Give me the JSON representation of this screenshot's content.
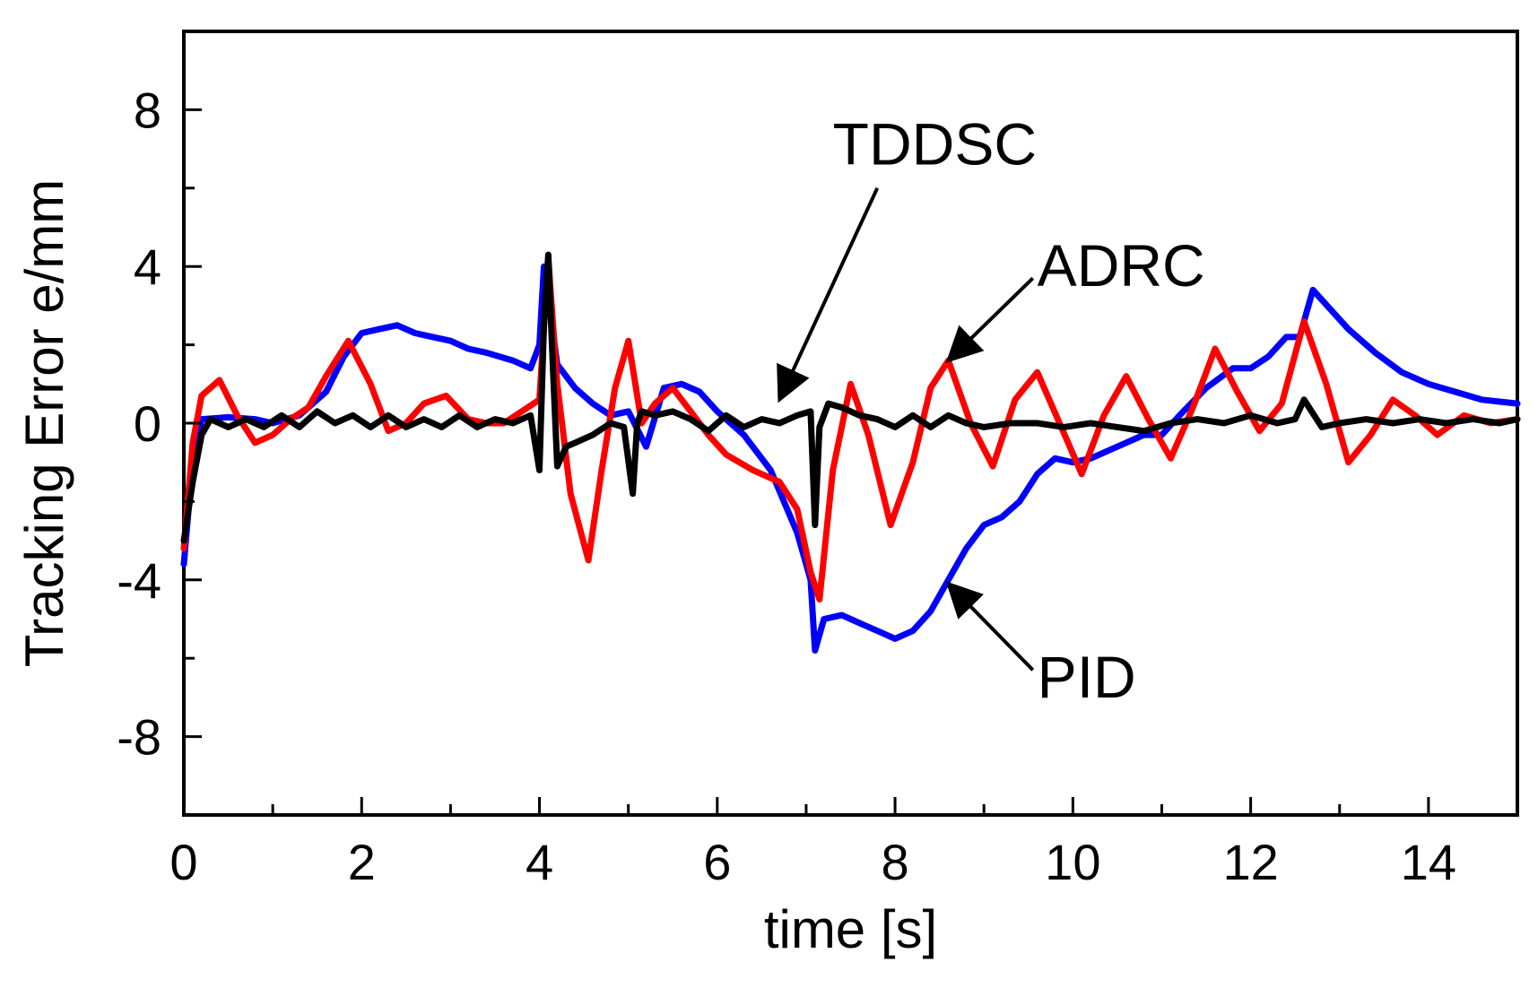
{
  "chart_data": {
    "type": "line",
    "title": "",
    "xlabel": "time [s]",
    "ylabel": "Tracking Error e/mm",
    "xlim": [
      0,
      15
    ],
    "ylim": [
      -10,
      10
    ],
    "xticks": [
      0,
      2,
      4,
      6,
      8,
      10,
      12,
      14
    ],
    "yticks": [
      -8,
      -4,
      0,
      4,
      8
    ],
    "xtick_labels": [
      "0",
      "2",
      "4",
      "6",
      "8",
      "10",
      "12",
      "14"
    ],
    "ytick_labels": [
      "-8",
      "-4",
      "0",
      "4",
      "8"
    ],
    "grid": false,
    "series": [
      {
        "name": "PID",
        "color": "#0000ff",
        "x": [
          0,
          0.08,
          0.2,
          0.5,
          0.8,
          1.0,
          1.3,
          1.6,
          1.8,
          2.0,
          2.2,
          2.4,
          2.6,
          2.8,
          3.0,
          3.2,
          3.4,
          3.7,
          3.9,
          4.0,
          4.05,
          4.1,
          4.2,
          4.4,
          4.6,
          4.8,
          5.0,
          5.2,
          5.4,
          5.6,
          5.8,
          6.0,
          6.3,
          6.6,
          6.9,
          7.05,
          7.1,
          7.2,
          7.4,
          7.6,
          7.8,
          8.0,
          8.2,
          8.4,
          8.6,
          8.8,
          9.0,
          9.2,
          9.4,
          9.6,
          9.8,
          10.0,
          10.2,
          10.5,
          10.8,
          11.0,
          11.2,
          11.5,
          11.8,
          12.0,
          12.2,
          12.4,
          12.55,
          12.7,
          12.9,
          13.1,
          13.4,
          13.7,
          14.0,
          14.3,
          14.6,
          15.0
        ],
        "y": [
          -3.6,
          -1.5,
          0.1,
          0.15,
          0.1,
          0.0,
          0.2,
          0.8,
          1.7,
          2.3,
          2.4,
          2.5,
          2.3,
          2.2,
          2.1,
          1.9,
          1.8,
          1.6,
          1.4,
          2.0,
          4.0,
          3.2,
          1.5,
          0.9,
          0.5,
          0.2,
          0.3,
          -0.6,
          0.9,
          1.0,
          0.8,
          0.3,
          -0.3,
          -1.2,
          -2.8,
          -4.0,
          -5.8,
          -5.0,
          -4.9,
          -5.1,
          -5.3,
          -5.5,
          -5.3,
          -4.8,
          -4.0,
          -3.2,
          -2.6,
          -2.4,
          -2.0,
          -1.3,
          -0.9,
          -1.0,
          -0.9,
          -0.6,
          -0.3,
          -0.3,
          0.2,
          0.9,
          1.4,
          1.4,
          1.7,
          2.2,
          2.2,
          3.4,
          2.9,
          2.4,
          1.8,
          1.3,
          1.0,
          0.8,
          0.6,
          0.5
        ]
      },
      {
        "name": "ADRC",
        "color": "#ff0000",
        "x": [
          0,
          0.1,
          0.2,
          0.4,
          0.6,
          0.8,
          1.0,
          1.2,
          1.4,
          1.6,
          1.85,
          2.1,
          2.3,
          2.5,
          2.7,
          2.95,
          3.2,
          3.4,
          3.6,
          3.8,
          4.0,
          4.1,
          4.2,
          4.35,
          4.55,
          4.7,
          4.85,
          5.0,
          5.15,
          5.3,
          5.5,
          5.7,
          5.9,
          6.1,
          6.4,
          6.7,
          6.9,
          7.05,
          7.15,
          7.3,
          7.5,
          7.7,
          7.95,
          8.2,
          8.4,
          8.6,
          8.85,
          9.1,
          9.35,
          9.6,
          9.85,
          10.1,
          10.35,
          10.6,
          10.85,
          11.1,
          11.35,
          11.6,
          11.85,
          12.1,
          12.35,
          12.6,
          12.85,
          13.1,
          13.35,
          13.6,
          13.85,
          14.1,
          14.4,
          14.7,
          15.0
        ],
        "y": [
          -3.2,
          -0.5,
          0.7,
          1.1,
          0.2,
          -0.5,
          -0.3,
          0.1,
          0.4,
          1.2,
          2.1,
          1.0,
          -0.2,
          0.0,
          0.5,
          0.7,
          0.1,
          0.0,
          0.0,
          0.3,
          0.6,
          4.2,
          1.0,
          -1.8,
          -3.5,
          -1.2,
          0.9,
          2.1,
          0.0,
          0.5,
          0.9,
          0.3,
          -0.3,
          -0.8,
          -1.2,
          -1.5,
          -2.2,
          -3.8,
          -4.5,
          -1.2,
          1.0,
          -0.3,
          -2.6,
          -1.0,
          0.9,
          1.6,
          0.0,
          -1.1,
          0.6,
          1.3,
          0.0,
          -1.3,
          0.2,
          1.2,
          0.1,
          -0.9,
          0.4,
          1.9,
          0.8,
          -0.2,
          0.5,
          2.6,
          1.0,
          -1.0,
          -0.3,
          0.6,
          0.2,
          -0.3,
          0.2,
          0.0,
          0.1
        ]
      },
      {
        "name": "TDDSC",
        "color": "#000000",
        "x": [
          0,
          0.1,
          0.2,
          0.3,
          0.5,
          0.7,
          0.9,
          1.1,
          1.3,
          1.5,
          1.7,
          1.9,
          2.1,
          2.3,
          2.5,
          2.7,
          2.9,
          3.1,
          3.3,
          3.5,
          3.7,
          3.9,
          4.0,
          4.05,
          4.1,
          4.15,
          4.2,
          4.3,
          4.4,
          4.6,
          4.8,
          4.95,
          5.05,
          5.1,
          5.15,
          5.3,
          5.5,
          5.7,
          5.9,
          6.1,
          6.3,
          6.5,
          6.7,
          6.9,
          7.05,
          7.1,
          7.15,
          7.25,
          7.4,
          7.6,
          7.8,
          8.0,
          8.2,
          8.4,
          8.6,
          8.8,
          9.0,
          9.3,
          9.6,
          9.9,
          10.2,
          10.5,
          10.8,
          11.1,
          11.4,
          11.7,
          12.0,
          12.3,
          12.5,
          12.6,
          12.8,
          13.0,
          13.3,
          13.6,
          13.9,
          14.2,
          14.5,
          14.8,
          15.0
        ],
        "y": [
          -3.0,
          -1.5,
          -0.3,
          0.1,
          -0.1,
          0.1,
          -0.1,
          0.2,
          -0.1,
          0.3,
          0.0,
          0.2,
          -0.1,
          0.2,
          -0.1,
          0.1,
          -0.1,
          0.2,
          -0.1,
          0.1,
          0.0,
          0.2,
          -1.2,
          2.5,
          4.3,
          1.5,
          -1.1,
          -0.6,
          -0.5,
          -0.3,
          0.0,
          -0.1,
          -1.8,
          0.0,
          0.3,
          0.2,
          0.3,
          0.1,
          -0.2,
          0.2,
          -0.1,
          0.1,
          0.0,
          0.2,
          0.3,
          -2.6,
          -0.1,
          0.5,
          0.4,
          0.2,
          0.1,
          -0.1,
          0.2,
          -0.1,
          0.2,
          0.0,
          -0.1,
          0.0,
          0.0,
          -0.1,
          0.0,
          -0.1,
          -0.2,
          0.0,
          0.1,
          0.0,
          0.2,
          0.0,
          0.1,
          0.6,
          -0.1,
          0.0,
          0.1,
          0.0,
          0.1,
          0.0,
          0.1,
          0.0,
          0.1
        ]
      }
    ],
    "annotations": [
      {
        "text": "TDDSC",
        "text_x": 7.3,
        "text_y": 7.1,
        "arrow_from": [
          7.8,
          6.0
        ],
        "arrow_to": [
          6.7,
          0.6
        ]
      },
      {
        "text": "ADRC",
        "text_x": 9.6,
        "text_y": 4.0,
        "arrow_from": [
          9.55,
          3.7
        ],
        "arrow_to": [
          8.6,
          1.6
        ]
      },
      {
        "text": "PID",
        "text_x": 9.6,
        "text_y": -6.5,
        "arrow_from": [
          9.55,
          -6.3
        ],
        "arrow_to": [
          8.6,
          -4.1
        ]
      }
    ]
  }
}
